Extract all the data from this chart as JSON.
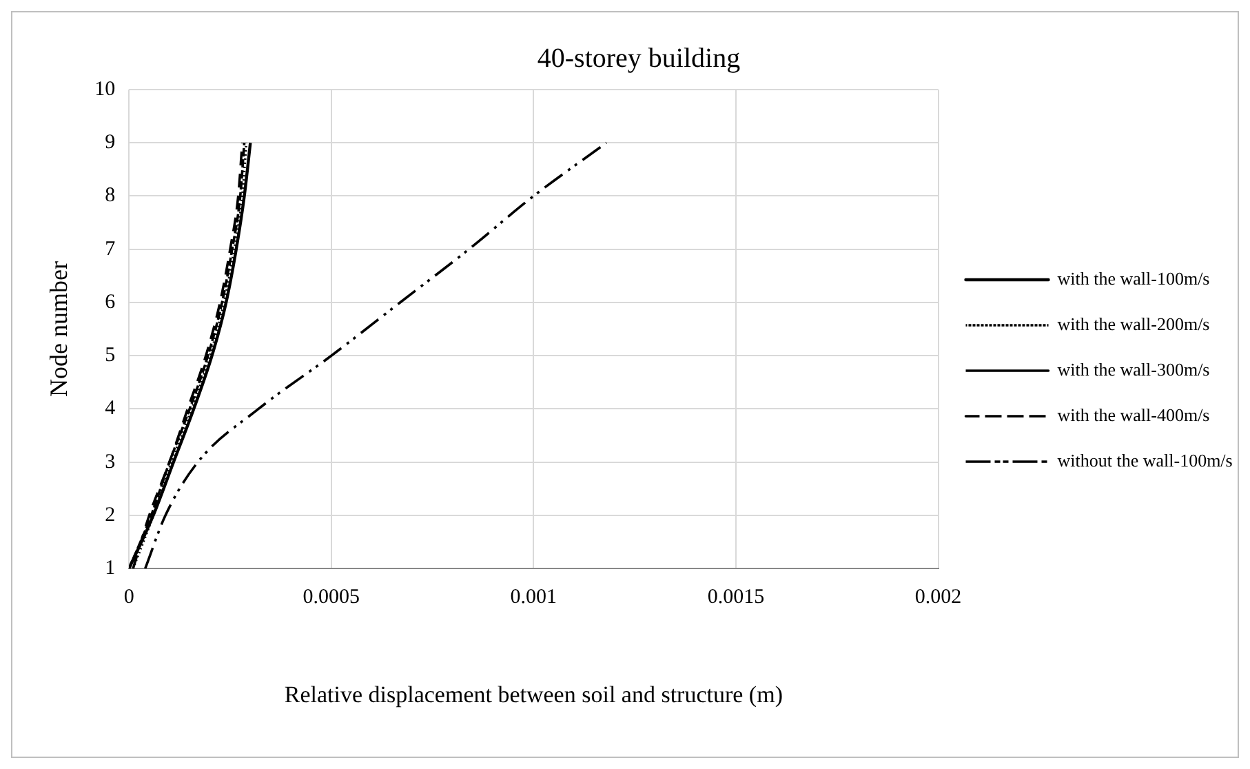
{
  "chart_data": {
    "type": "line",
    "title": "40-storey building",
    "xlabel": "Relative displacement between soil and structure (m)",
    "ylabel": "Node number",
    "xlim": [
      0,
      0.002
    ],
    "xticks": [
      0,
      0.0005,
      0.001,
      0.0015,
      0.002
    ],
    "ylim": [
      1,
      10
    ],
    "yticks": [
      1,
      2,
      3,
      4,
      5,
      6,
      7,
      8,
      9,
      10
    ],
    "grid": true,
    "legend": "right",
    "marker": "none",
    "series": [
      {
        "name": "with the wall-100m/s",
        "color": "#000000",
        "line_style": "solid",
        "x": [
          0,
          6e-05,
          0.00011,
          0.00016,
          0.000205,
          0.00024,
          0.000265,
          0.000285,
          0.0003
        ],
        "values": [
          1,
          2,
          3,
          4,
          5,
          6,
          7,
          8,
          9
        ]
      },
      {
        "name": "with the wall-200m/s",
        "color": "#000000",
        "line_style": "dotted",
        "x": [
          1e-05,
          6e-05,
          0.000105,
          0.000155,
          0.0002,
          0.000235,
          0.00026,
          0.00028,
          0.00029
        ],
        "values": [
          1,
          2,
          3,
          4,
          5,
          6,
          7,
          8,
          9
        ]
      },
      {
        "name": "with the wall-300m/s",
        "color": "#000000",
        "line_style": "dashed",
        "x": [
          0,
          5.5e-05,
          0.0001,
          0.00015,
          0.000195,
          0.00023,
          0.000255,
          0.000275,
          0.000285
        ],
        "values": [
          1,
          2,
          3,
          4,
          5,
          6,
          7,
          8,
          9
        ]
      },
      {
        "name": "with the wall-400m/s",
        "color": "#000000",
        "line_style": "dashed",
        "x": [
          1e-05,
          5e-05,
          0.0001,
          0.000145,
          0.00019,
          0.000225,
          0.00025,
          0.00027,
          0.00028
        ],
        "values": [
          1,
          2,
          3,
          4,
          5,
          6,
          7,
          8,
          9
        ]
      },
      {
        "name": "without the wall-100m/s",
        "color": "#000000",
        "line_style": "dashed",
        "x": [
          4e-05,
          9e-05,
          0.00017,
          0.00032,
          0.0005,
          0.00067,
          0.00084,
          0.001,
          0.00118
        ],
        "values": [
          1,
          2,
          3,
          4,
          5,
          6,
          7,
          8,
          9
        ]
      }
    ]
  }
}
